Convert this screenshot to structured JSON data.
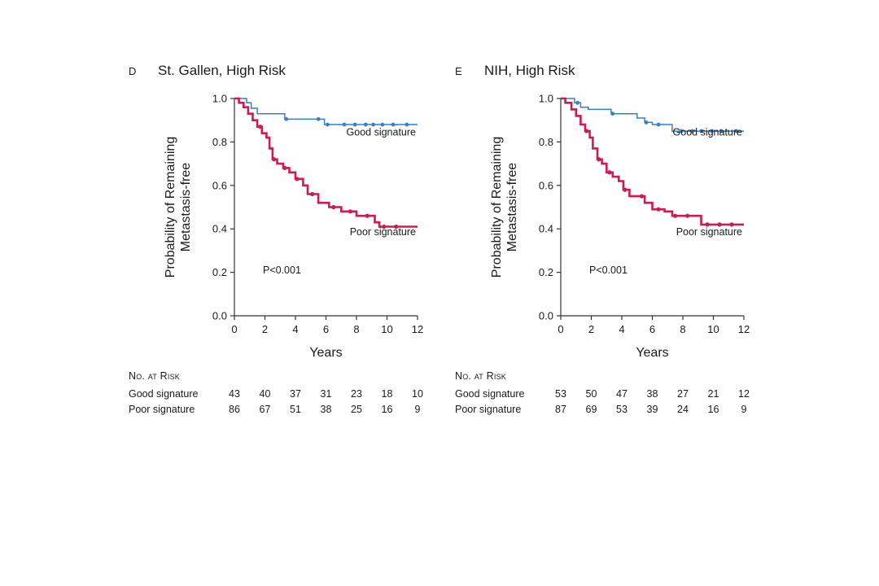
{
  "colors": {
    "good": "#3a7fc1",
    "poor": "#cc1a52",
    "axis": "#333333"
  },
  "chart_data": [
    {
      "type": "line",
      "panel": "D",
      "title": "St. Gallen, High Risk",
      "xlabel": "Years",
      "ylabel": [
        "Probability of Remaining",
        "Metastasis-free"
      ],
      "xlim": [
        0,
        12
      ],
      "ylim": [
        0,
        1
      ],
      "xticks": [
        "0",
        "2",
        "4",
        "6",
        "8",
        "10",
        "12"
      ],
      "yticks": [
        "0.0",
        "0.2",
        "0.4",
        "0.6",
        "0.8",
        "1.0"
      ],
      "annotation": "P<0.001",
      "series": [
        {
          "name": "Good signature",
          "kind": "good",
          "x": [
            0,
            0.8,
            0.8,
            1.1,
            1.1,
            1.5,
            1.5,
            3.3,
            3.3,
            5.9,
            5.9,
            12
          ],
          "y": [
            1,
            1,
            0.98,
            0.98,
            0.955,
            0.955,
            0.93,
            0.93,
            0.905,
            0.905,
            0.88,
            0.88
          ],
          "censor_x": [
            3.4,
            5.5,
            6.1,
            7.2,
            7.9,
            8.6,
            9.1,
            9.7,
            10.4,
            11.3
          ]
        },
        {
          "name": "Poor signature",
          "kind": "poor",
          "x": [
            0,
            0.3,
            0.3,
            0.6,
            0.6,
            0.9,
            0.9,
            1.2,
            1.2,
            1.5,
            1.5,
            1.8,
            1.8,
            2.1,
            2.1,
            2.3,
            2.3,
            2.5,
            2.5,
            2.8,
            2.8,
            3.2,
            3.2,
            3.6,
            3.6,
            4.0,
            4.0,
            4.5,
            4.5,
            4.8,
            4.8,
            5.5,
            5.5,
            6.2,
            6.2,
            7.0,
            7.0,
            8.0,
            8.0,
            9.2,
            9.2,
            9.5,
            9.5,
            12
          ],
          "y": [
            1,
            1,
            0.98,
            0.98,
            0.96,
            0.96,
            0.93,
            0.93,
            0.9,
            0.9,
            0.87,
            0.87,
            0.84,
            0.84,
            0.82,
            0.82,
            0.77,
            0.77,
            0.72,
            0.72,
            0.7,
            0.7,
            0.68,
            0.68,
            0.66,
            0.66,
            0.63,
            0.63,
            0.6,
            0.6,
            0.56,
            0.56,
            0.52,
            0.52,
            0.5,
            0.5,
            0.48,
            0.48,
            0.46,
            0.46,
            0.43,
            0.43,
            0.41,
            0.41
          ],
          "censor_x": [
            1.7,
            2.6,
            3.3,
            4.1,
            5.1,
            6.5,
            7.6,
            8.7,
            9.8,
            10.6
          ]
        }
      ],
      "labels": {
        "good": "Good signature",
        "poor": "Poor signature"
      }
    },
    {
      "type": "line",
      "panel": "E",
      "title": "NIH, High Risk",
      "xlabel": "Years",
      "ylabel": [
        "Probability of Remaining",
        "Metastasis-free"
      ],
      "xlim": [
        0,
        12
      ],
      "ylim": [
        0,
        1
      ],
      "xticks": [
        "0",
        "2",
        "4",
        "6",
        "8",
        "10",
        "12"
      ],
      "yticks": [
        "0.0",
        "0.2",
        "0.4",
        "0.6",
        "0.8",
        "1.0"
      ],
      "annotation": "P<0.001",
      "series": [
        {
          "name": "Good signature",
          "kind": "good",
          "x": [
            0,
            0.9,
            0.9,
            1.3,
            1.3,
            1.8,
            1.8,
            3.3,
            3.3,
            5.0,
            5.0,
            5.5,
            5.5,
            6.0,
            6.0,
            7.3,
            7.3,
            12
          ],
          "y": [
            1,
            1,
            0.98,
            0.98,
            0.96,
            0.96,
            0.95,
            0.95,
            0.93,
            0.93,
            0.91,
            0.91,
            0.89,
            0.89,
            0.88,
            0.88,
            0.85,
            0.85
          ],
          "censor_x": [
            1.1,
            3.4,
            5.6,
            6.4,
            7.9,
            8.6,
            9.2,
            9.9,
            10.5,
            11.5
          ]
        },
        {
          "name": "Poor signature",
          "kind": "poor",
          "x": [
            0,
            0.3,
            0.3,
            0.7,
            0.7,
            1.0,
            1.0,
            1.3,
            1.3,
            1.6,
            1.6,
            1.9,
            1.9,
            2.1,
            2.1,
            2.4,
            2.4,
            2.7,
            2.7,
            3.0,
            3.0,
            3.4,
            3.4,
            3.8,
            3.8,
            4.1,
            4.1,
            4.5,
            4.5,
            5.5,
            5.5,
            6.0,
            6.0,
            6.8,
            6.8,
            7.3,
            7.3,
            9.2,
            9.2,
            12
          ],
          "y": [
            1,
            1,
            0.98,
            0.98,
            0.95,
            0.95,
            0.92,
            0.92,
            0.88,
            0.88,
            0.85,
            0.85,
            0.82,
            0.82,
            0.77,
            0.77,
            0.72,
            0.72,
            0.7,
            0.7,
            0.66,
            0.66,
            0.64,
            0.64,
            0.62,
            0.62,
            0.58,
            0.58,
            0.55,
            0.55,
            0.52,
            0.52,
            0.49,
            0.49,
            0.48,
            0.48,
            0.46,
            0.46,
            0.42,
            0.42
          ],
          "censor_x": [
            1.7,
            2.5,
            3.2,
            4.2,
            5.3,
            6.4,
            7.5,
            8.3,
            9.6,
            10.4,
            11.2
          ]
        }
      ],
      "labels": {
        "good": "Good signature",
        "poor": "Poor signature"
      }
    }
  ],
  "risk_tables": [
    {
      "header": "No. at Risk",
      "rows": [
        {
          "label": "Good signature",
          "values": [
            "43",
            "40",
            "37",
            "31",
            "23",
            "18",
            "10"
          ]
        },
        {
          "label": "Poor signature",
          "values": [
            "86",
            "67",
            "51",
            "38",
            "25",
            "16",
            "9"
          ]
        }
      ]
    },
    {
      "header": "No. at Risk",
      "rows": [
        {
          "label": "Good signature",
          "values": [
            "53",
            "50",
            "47",
            "38",
            "27",
            "21",
            "12"
          ]
        },
        {
          "label": "Poor signature",
          "values": [
            "87",
            "69",
            "53",
            "39",
            "24",
            "16",
            "9"
          ]
        }
      ]
    }
  ]
}
